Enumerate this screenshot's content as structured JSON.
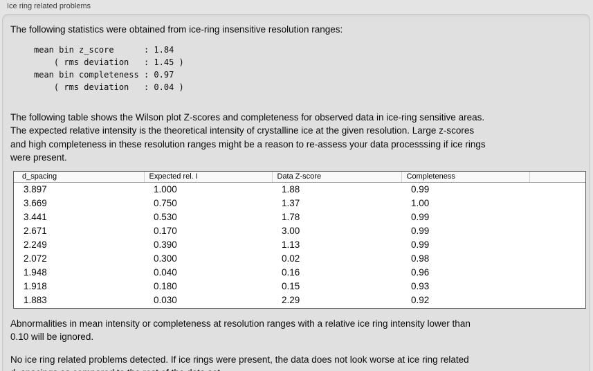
{
  "panel": {
    "title": "Ice ring related problems"
  },
  "colors": {
    "background": "#e4e4e4",
    "panel_background": "#e0e0e0",
    "table_background": "#ffffff",
    "table_border": "#5b5b5b",
    "header_background": "#f9f9f9"
  },
  "stats": {
    "intro": "The following statistics were obtained from ice-ring insensitive resolution ranges:",
    "block": "mean bin z_score      : 1.84\n    ( rms deviation   : 1.45 )\nmean bin completeness : 0.97\n    ( rms deviation   : 0.04 )"
  },
  "description": "The following table shows the Wilson plot Z-scores and completeness for observed data in ice-ring sensitive areas.\nThe expected relative intensity is the theoretical intensity of crystalline ice at the given resolution. Large z-scores\nand high completeness in these resolution ranges might be a reason to re-assess your data processsing if ice rings\nwere present.",
  "table": {
    "columns": [
      "d_spacing",
      "Expected rel. I",
      "Data Z-score",
      "Completeness",
      ""
    ],
    "rows": [
      [
        "3.897",
        "1.000",
        "1.88",
        "0.99"
      ],
      [
        "3.669",
        "0.750",
        "1.37",
        "1.00"
      ],
      [
        "3.441",
        "0.530",
        "1.78",
        "0.99"
      ],
      [
        "2.671",
        "0.170",
        "3.00",
        "0.99"
      ],
      [
        "2.249",
        "0.390",
        "1.13",
        "0.99"
      ],
      [
        "2.072",
        "0.300",
        "0.02",
        "0.98"
      ],
      [
        "1.948",
        "0.040",
        "0.16",
        "0.96"
      ],
      [
        "1.918",
        "0.180",
        "0.15",
        "0.93"
      ],
      [
        "1.883",
        "0.030",
        "2.29",
        "0.92"
      ]
    ]
  },
  "notes": {
    "threshold": "Abnormalities in mean intensity or completeness at resolution ranges with a relative ice ring intensity lower than\n0.10 will be ignored.",
    "result": "No ice ring related problems detected. If ice rings were present, the data does not look worse at ice ring related\nd_spacings as compared to the rest of the data set."
  }
}
